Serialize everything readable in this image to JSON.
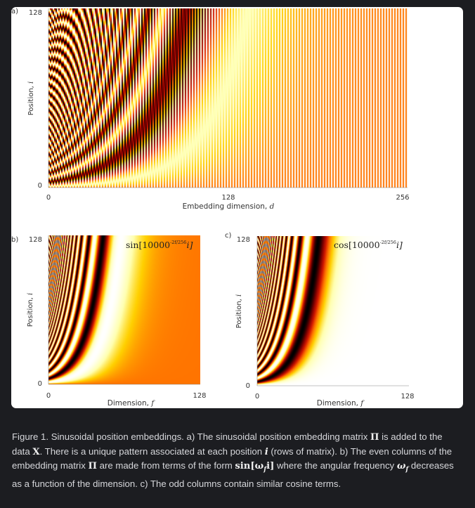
{
  "figure": {
    "panel_a": {
      "tag": "a)",
      "ylabel_text": "Position, ",
      "ylabel_var": "i",
      "xlabel_text": "Embedding dimension, ",
      "xlabel_var": "d",
      "y_ticks": [
        "0",
        "128"
      ],
      "x_ticks": [
        "0",
        "128",
        "256"
      ]
    },
    "panel_b": {
      "tag": "b)",
      "ylabel_text": "Position, ",
      "ylabel_var": "i",
      "xlabel_text": "Dimension, ",
      "xlabel_var": "f",
      "y_ticks": [
        "0",
        "128"
      ],
      "x_ticks": [
        "0",
        "128"
      ],
      "formula_fn": "sin[10000",
      "formula_exp": "-2f/256",
      "formula_tail": "i]"
    },
    "panel_c": {
      "tag": "c)",
      "ylabel_text": "Position, ",
      "ylabel_var": "i",
      "xlabel_text": "Dimension, ",
      "xlabel_var": "f",
      "y_ticks": [
        "0",
        "128"
      ],
      "x_ticks": [
        "0",
        "128"
      ],
      "formula_fn": "cos[10000",
      "formula_exp": "-2f/256",
      "formula_tail": "i]"
    }
  },
  "caption": {
    "t1": "Figure 1. Sinusoidal position embeddings. a) The sinusoidal position embedding matrix ",
    "s1": "Π",
    "t2": " is added to the data ",
    "s2": "X",
    "t3": ".  There is a unique pattern associated at each position ",
    "s3": "i",
    "t4": " (rows of matrix). b) The even columns of the embedding matrix ",
    "s4": "Π",
    "t5": " are made from terms of the form ",
    "s5": "sin[ω",
    "s5sub": "f",
    "s5b": "i]",
    "t6": " where the angular frequency ",
    "s6": "ω",
    "s6sub": "f",
    "t7": " decreases as a function of the dimension.  c) The odd columns contain similar cosine terms."
  },
  "colors": {
    "page_bg": "#1c1d21",
    "card_bg": "#ffffff",
    "caption_text": "#d6d7db",
    "colormap": [
      "#000000",
      "#7a0000",
      "#d21800",
      "#ff7400",
      "#ffd000",
      "#ffffb0",
      "#ffffff"
    ]
  },
  "heatmap": {
    "num_positions": 128,
    "embedding_dim": 256,
    "num_frequencies": 128,
    "base": 10000
  }
}
